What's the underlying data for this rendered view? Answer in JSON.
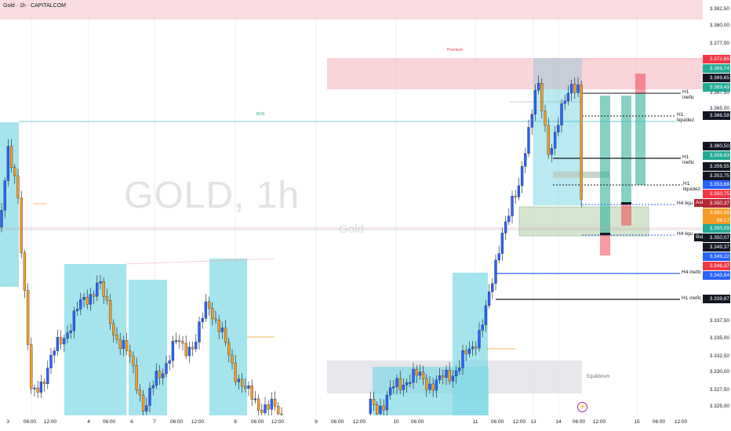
{
  "header": {
    "title": "Gold · 1h · CAPITALCOM"
  },
  "watermark": {
    "symbol": "GOLD, 1h",
    "name": "Gold"
  },
  "y_axis": {
    "ticks": [
      "3.382,50",
      "3.380,00",
      "3.377,50",
      "3.367,50",
      "3.365,00",
      "3.337,50",
      "3.335,00",
      "3.332,50",
      "3.330,00",
      "3.327,50",
      "3.325,00"
    ]
  },
  "price_tags": [
    {
      "text": "3.372,65",
      "color": "#f23645"
    },
    {
      "text": "3.369,74",
      "color": "#22ab94"
    },
    {
      "text": "3.369,65",
      "color": "#131722"
    },
    {
      "text": "3.369,43",
      "color": "#22ab94"
    },
    {
      "text": "3.366,58",
      "color": "#131722"
    },
    {
      "text": "3.360,50",
      "color": "#131722"
    },
    {
      "text": "3.356,63",
      "color": "#22ab94"
    },
    {
      "text": "3.356,55",
      "color": "#131722"
    },
    {
      "text": "3.353,75",
      "color": "#131722"
    },
    {
      "text": "3.353,68",
      "color": "#2962ff"
    },
    {
      "text": "3.350,75",
      "color": "#f23645"
    },
    {
      "text": "3.350,37",
      "color": "#b22833"
    },
    {
      "text": "3.350,09",
      "color": "#f59b23"
    },
    {
      "text": "06:17",
      "color": "#f59b23"
    },
    {
      "text": "3.350,09",
      "color": "#22ab94"
    },
    {
      "text": "3.350,07",
      "color": "#131722"
    },
    {
      "text": "3.349,37",
      "color": "#131722"
    },
    {
      "text": "3.349,22",
      "color": "#2962ff"
    },
    {
      "text": "3.346,37",
      "color": "#f23645"
    },
    {
      "text": "3.343,64",
      "color": "#2962ff"
    },
    {
      "text": "3.339,87",
      "color": "#131722"
    }
  ],
  "level_labels": [
    {
      "text": "H1 inefic"
    },
    {
      "text": "H1 liquidez"
    },
    {
      "text": "H1 inefic"
    },
    {
      "text": "H1 liquidez"
    },
    {
      "text": "H4 liqu"
    },
    {
      "text": "H4 liqu"
    },
    {
      "text": "H4 inefic"
    },
    {
      "text": "H1 inefic"
    }
  ],
  "side_tags": {
    "ask": "Ask",
    "bid": "Bid"
  },
  "zones": {
    "premium": "Premium",
    "equilibrium": "Equilibrium",
    "bos": "BOS"
  },
  "x_axis": {
    "ticks": [
      "3",
      "06:00",
      "12:00",
      "4",
      "06:00",
      "6",
      "7",
      "06:00",
      "12:00",
      "8",
      "06:00",
      "12:00",
      "9",
      "06:00",
      "12:00",
      "10",
      "06:00",
      "11",
      "06:00",
      "12:00",
      "13",
      "14",
      "06:00",
      "12:00",
      "15",
      "06:00",
      "12:00"
    ]
  },
  "colors": {
    "up": "#2962ff",
    "down": "#f59b23",
    "teal_zone": "#7fd8e6",
    "pink_zone": "#f7c5cc"
  },
  "chart_data": {
    "type": "candlestick",
    "title": "Gold · 1h · CAPITALCOM",
    "ylim": [
      3323,
      3384
    ],
    "key_levels": [
      3372.65,
      3369.74,
      3369.65,
      3369.43,
      3366.58,
      3360.5,
      3356.63,
      3356.55,
      3353.75,
      3353.68,
      3350.75,
      3350.37,
      3350.09,
      3350.07,
      3349.37,
      3349.22,
      3346.37,
      3343.64,
      3339.87
    ]
  }
}
